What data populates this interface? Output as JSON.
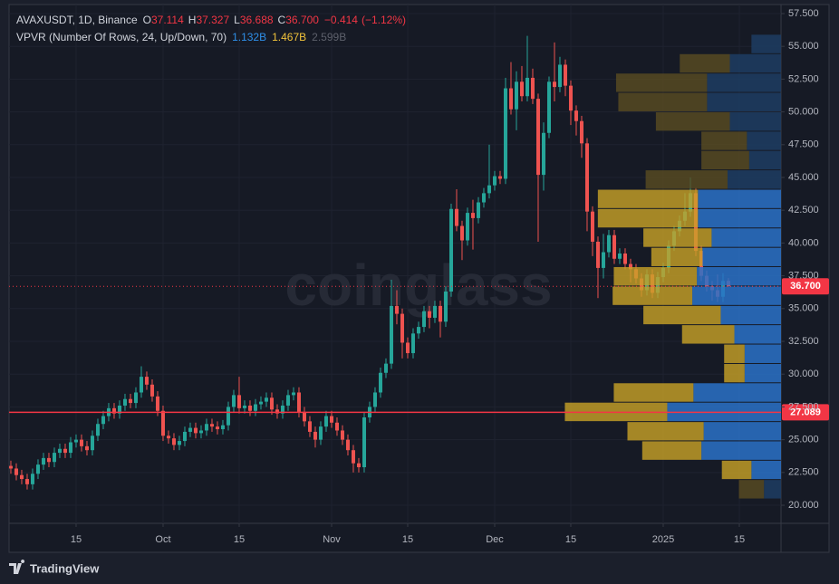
{
  "chart_data": {
    "type": "candlestick",
    "title": "AVAXUSDT, 1D, Binance",
    "ohlc_letters": [
      "O",
      "H",
      "L",
      "C"
    ],
    "change": {
      "value": -0.414,
      "label": "−0.414"
    },
    "change_pct": {
      "value": -1.12,
      "label": "(−1.12%)"
    },
    "up_color": "#26a69a",
    "down_color": "#ef5350",
    "open": [
      23.0,
      22.8,
      22.3,
      22.0,
      21.6,
      22.4,
      23.1,
      23.6,
      23.3,
      24.0,
      24.3,
      24.0,
      24.8,
      25.0,
      24.5,
      24.2,
      25.3,
      26.2,
      26.8,
      27.4,
      27.0,
      27.6,
      28.1,
      27.8,
      28.6,
      29.8,
      29.2,
      28.3,
      27.2,
      25.3,
      25.1,
      24.6,
      24.9,
      25.6,
      25.9,
      25.5,
      25.7,
      26.2,
      26.0,
      25.8,
      26.1,
      27.5,
      28.4,
      27.4,
      27.6,
      27.2,
      27.7,
      27.9,
      28.2,
      27.3,
      27.0,
      27.6,
      28.4,
      28.6,
      27.1,
      26.4,
      25.6,
      25.0,
      26.0,
      26.8,
      26.3,
      25.7,
      25.0,
      24.2,
      23.2,
      22.9,
      26.7,
      27.5,
      28.6,
      30.1,
      30.8,
      35.2,
      34.6,
      32.4,
      31.6,
      33.1,
      33.6,
      34.8,
      34.3,
      35.2,
      34.0,
      36.3,
      42.6,
      41.3,
      40.2,
      42.3,
      41.9,
      43.1,
      43.8,
      44.4,
      45.1,
      44.9,
      51.8,
      50.2,
      52.3,
      51.2,
      52.6,
      51.0,
      45.2,
      48.4,
      52.3,
      51.9,
      53.6,
      52.0,
      50.1,
      49.3,
      47.6,
      42.4,
      40.1,
      38.1,
      39.3,
      40.6,
      38.8,
      39.2,
      38.4,
      38.0,
      37.3,
      36.4,
      37.6,
      36.2,
      37.4,
      38.1,
      39.8,
      40.9,
      41.7,
      42.4,
      43.8,
      39.4,
      37.5,
      36.7,
      36.4,
      35.9,
      37.114
    ],
    "high": [
      23.4,
      23.2,
      22.7,
      22.4,
      22.8,
      23.5,
      24.0,
      24.0,
      24.4,
      24.7,
      24.7,
      25.2,
      25.4,
      25.4,
      24.9,
      25.7,
      26.6,
      27.2,
      27.8,
      27.8,
      28.0,
      28.5,
      28.5,
      29.0,
      30.6,
      30.2,
      29.6,
      28.7,
      27.6,
      25.7,
      25.5,
      25.3,
      26.0,
      26.3,
      26.3,
      26.1,
      26.6,
      26.6,
      26.4,
      26.5,
      27.9,
      28.8,
      29.8,
      28.0,
      28.0,
      28.1,
      28.3,
      28.6,
      28.6,
      27.7,
      28.0,
      28.8,
      29.0,
      29.0,
      27.5,
      26.8,
      26.0,
      26.4,
      27.2,
      27.2,
      26.7,
      26.1,
      25.4,
      24.6,
      23.6,
      27.1,
      27.9,
      29.0,
      30.5,
      31.2,
      37.2,
      36.4,
      35.0,
      32.8,
      33.5,
      34.0,
      35.2,
      35.2,
      35.6,
      35.6,
      36.7,
      43.0,
      44.1,
      41.7,
      42.7,
      43.3,
      43.5,
      44.2,
      47.5,
      45.5,
      45.5,
      52.6,
      53.8,
      53.1,
      53.5,
      55.8,
      53.3,
      51.4,
      49.2,
      52.7,
      55.3,
      54.2,
      54.0,
      52.4,
      50.5,
      49.7,
      48.0,
      42.8,
      40.5,
      40.7,
      41.0,
      41.0,
      39.6,
      39.6,
      38.8,
      38.4,
      37.7,
      38.0,
      38.0,
      37.8,
      38.5,
      40.2,
      41.3,
      42.1,
      43.8,
      45.0,
      44.2,
      39.8,
      37.9,
      37.1,
      37.6,
      37.7,
      37.327
    ],
    "low": [
      22.4,
      21.9,
      21.6,
      21.2,
      21.2,
      22.0,
      22.7,
      22.9,
      22.9,
      23.6,
      23.6,
      23.6,
      24.4,
      24.1,
      23.8,
      23.8,
      24.9,
      25.8,
      26.4,
      26.6,
      26.6,
      27.2,
      27.4,
      27.4,
      28.2,
      28.8,
      27.9,
      26.8,
      24.9,
      24.7,
      24.2,
      24.2,
      24.5,
      25.2,
      25.1,
      25.1,
      25.3,
      25.6,
      25.4,
      25.4,
      25.7,
      27.1,
      27.0,
      27.0,
      26.8,
      26.8,
      27.3,
      27.5,
      26.9,
      26.6,
      26.6,
      27.2,
      28.0,
      26.7,
      26.0,
      25.2,
      24.4,
      24.6,
      25.6,
      25.9,
      25.3,
      24.6,
      23.8,
      22.5,
      22.5,
      22.5,
      26.3,
      27.1,
      28.2,
      29.7,
      30.4,
      33.8,
      31.2,
      31.2,
      31.2,
      32.7,
      33.2,
      33.5,
      33.9,
      32.8,
      33.6,
      35.9,
      40.9,
      38.7,
      39.8,
      39.5,
      41.5,
      42.7,
      43.4,
      44.0,
      44.5,
      44.5,
      49.8,
      48.6,
      50.8,
      50.8,
      50.6,
      40.1,
      44.0,
      48.0,
      50.8,
      51.5,
      51.2,
      49.0,
      48.2,
      46.5,
      40.9,
      39.0,
      35.8,
      37.3,
      38.9,
      38.4,
      38.4,
      38.0,
      37.0,
      36.9,
      35.9,
      36.0,
      35.8,
      35.8,
      37.0,
      37.7,
      39.4,
      40.5,
      41.3,
      42.0,
      39.0,
      37.1,
      36.3,
      35.6,
      35.5,
      35.5,
      36.688
    ],
    "close": [
      22.8,
      22.3,
      22.0,
      21.6,
      22.4,
      23.1,
      23.6,
      23.3,
      24.0,
      24.3,
      24.0,
      24.8,
      25.0,
      24.5,
      24.2,
      25.3,
      26.2,
      26.8,
      27.4,
      27.0,
      27.6,
      28.1,
      27.8,
      28.6,
      29.8,
      29.2,
      28.3,
      27.2,
      25.3,
      25.1,
      24.6,
      24.9,
      25.6,
      25.9,
      25.5,
      25.7,
      26.2,
      26.0,
      25.8,
      26.1,
      27.5,
      28.4,
      27.4,
      27.6,
      27.2,
      27.7,
      27.9,
      28.2,
      27.3,
      27.0,
      27.6,
      28.4,
      28.6,
      27.1,
      26.4,
      25.6,
      25.0,
      26.0,
      26.8,
      26.3,
      25.7,
      25.0,
      24.2,
      23.2,
      22.9,
      26.7,
      27.5,
      28.6,
      30.1,
      30.8,
      35.2,
      34.6,
      32.4,
      31.6,
      33.1,
      33.6,
      34.8,
      34.3,
      35.2,
      34.0,
      36.3,
      42.6,
      41.3,
      40.2,
      42.3,
      41.9,
      43.1,
      43.8,
      44.4,
      45.1,
      44.9,
      51.8,
      50.2,
      52.3,
      51.2,
      52.6,
      51.0,
      45.2,
      48.4,
      52.3,
      51.9,
      53.6,
      52.0,
      50.1,
      49.3,
      47.6,
      42.4,
      40.1,
      38.1,
      39.3,
      40.6,
      38.8,
      39.2,
      38.4,
      38.0,
      37.3,
      36.4,
      37.6,
      36.2,
      37.4,
      38.1,
      39.8,
      40.9,
      41.7,
      42.4,
      43.8,
      39.4,
      37.5,
      36.7,
      36.4,
      35.9,
      37.114,
      36.7
    ],
    "xlim": [
      -0.33,
      141.67
    ],
    "xticks": [
      {
        "value": 12,
        "label": "15"
      },
      {
        "value": 28,
        "label": "Oct"
      },
      {
        "value": 42,
        "label": "15"
      },
      {
        "value": 59,
        "label": "Nov"
      },
      {
        "value": 73,
        "label": "15"
      },
      {
        "value": 89,
        "label": "Dec"
      },
      {
        "value": 103,
        "label": "15"
      },
      {
        "value": 120,
        "label": "2025"
      },
      {
        "value": 134,
        "label": "15"
      }
    ],
    "ylim": [
      18.62,
      58.19
    ],
    "yticks": [
      {
        "value": 20,
        "label": "20.000"
      },
      {
        "value": 22.5,
        "label": "22.500"
      },
      {
        "value": 25,
        "label": "25.000"
      },
      {
        "value": 27.5,
        "label": "27.500"
      },
      {
        "value": 30,
        "label": "30.000"
      },
      {
        "value": 32.5,
        "label": "32.500"
      },
      {
        "value": 35,
        "label": "35.000"
      },
      {
        "value": 37.5,
        "label": "37.500"
      },
      {
        "value": 40,
        "label": "40.000"
      },
      {
        "value": 42.5,
        "label": "42.500"
      },
      {
        "value": 45,
        "label": "45.000"
      },
      {
        "value": 47.5,
        "label": "47.500"
      },
      {
        "value": 50,
        "label": "50.000"
      },
      {
        "value": 52.5,
        "label": "52.500"
      },
      {
        "value": 55,
        "label": "55.000"
      },
      {
        "value": 57.5,
        "label": "57.500"
      }
    ],
    "grid": true,
    "last_price": {
      "value": 36.7,
      "label": "36.700"
    },
    "poc": {
      "value": 27.089,
      "label": "27.089"
    },
    "profile": {
      "title": "VPVR (Number Of Rows, 24, Up/Down, 70)",
      "up_total": {
        "value": 1.132,
        "label": "1.132B"
      },
      "down_total": {
        "value": 1.467,
        "label": "1.467B"
      },
      "total": {
        "value": 2.599,
        "label": "2.599B"
      },
      "up_color": "#2a72c8",
      "down_color": "#c9a227",
      "up_color_dim": "#1d3d63",
      "down_color_dim": "#5a4c22",
      "value_area_rows": [
        1,
        15
      ],
      "bins": [
        20.48,
        21.96,
        23.43,
        24.91,
        26.38,
        27.86,
        29.34,
        30.81,
        32.29,
        33.77,
        35.24,
        36.72,
        38.2,
        39.67,
        41.15,
        42.63,
        44.1,
        45.58,
        47.06,
        48.53,
        50.01,
        51.49,
        52.96,
        54.44,
        55.92
      ],
      "up": [
        15,
        26,
        70,
        68,
        100,
        77,
        32,
        32,
        41,
        53,
        78,
        74,
        69,
        61,
        73,
        73,
        47,
        28,
        30,
        45,
        65,
        65,
        45,
        26
      ],
      "down": [
        22,
        26,
        52,
        67,
        90,
        70,
        18,
        18,
        46,
        68,
        70,
        73,
        45,
        60,
        88,
        88,
        72,
        42,
        40,
        65,
        78,
        80,
        44,
        0
      ]
    },
    "watermark": "coinglass",
    "brand": "TradingView"
  }
}
